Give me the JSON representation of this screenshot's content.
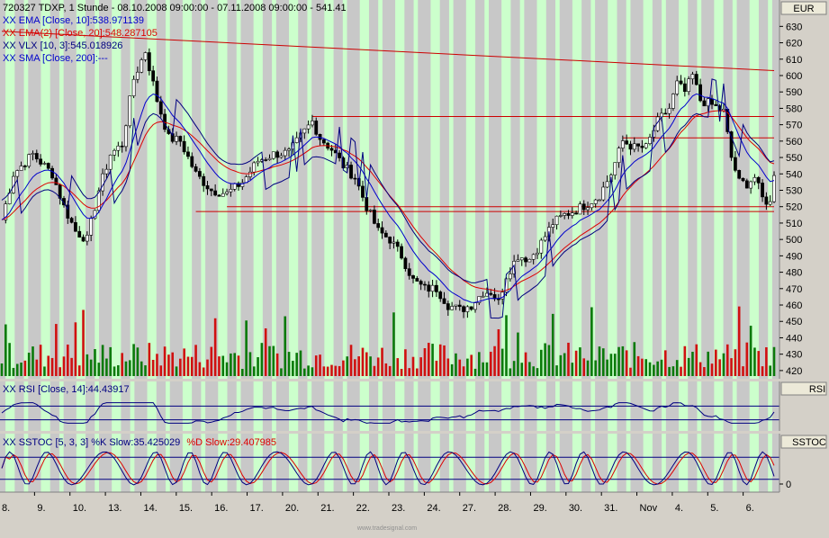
{
  "header": {
    "main_title": "720327  TDXP, 1 Stunde - 08.10.2008 09:00:00 - 07.11.2008 09:00:00 - 541.41",
    "ema10": "XX EMA [Close, 10]:538.971139",
    "ema20": "XX EMA(2) [Close, 20]:548.287105",
    "vlx": "XX VLX [10, 3]:545.018926",
    "sma200": "XX SMA [Close, 200]:---",
    "rsi": "XX RSI [Close, 14]:44.43917",
    "sstoc_main": "XX SSTOC [5, 3, 3] %K Slow:35.425029",
    "sstoc_d": "%D Slow:29.407985"
  },
  "axis": {
    "currency": "EUR",
    "rsi_label": "RSI",
    "sstoc_label": "SSTOC",
    "sstoc_zero": "0",
    "watermark": "www.tradesignal.com"
  },
  "colors": {
    "up": "#0a7a0a",
    "down": "#d01010",
    "ema10": "#0000cc",
    "ema20": "#dd0000",
    "vlx": "#000080",
    "band_green": "#ccffcc",
    "band_gray": "#c8c8c8",
    "hline": "#cc0000"
  },
  "chart_data": [
    {
      "type": "candlestick",
      "title": "720327  TDXP, 1 Stunde - 08.10.2008 09:00:00 - 07.11.2008 09:00:00 - 541.41",
      "ylim": [
        415,
        645
      ],
      "yticks": [
        630,
        620,
        610,
        600,
        590,
        580,
        570,
        560,
        550,
        540,
        530,
        520,
        510,
        500,
        490,
        480,
        470,
        460,
        450,
        440,
        430,
        420
      ],
      "x_labels": [
        "8.",
        "9.",
        "10.",
        "13.",
        "14.",
        "15.",
        "16.",
        "17.",
        "20.",
        "21.",
        "22.",
        "23.",
        "24.",
        "27.",
        "28.",
        "29.",
        "30.",
        "31.",
        "Nov",
        "4.",
        "5.",
        "6."
      ],
      "close_keypoints": [
        [
          0,
          512
        ],
        [
          3,
          540
        ],
        [
          8,
          552
        ],
        [
          13,
          540
        ],
        [
          16,
          520
        ],
        [
          19,
          505
        ],
        [
          22,
          500
        ],
        [
          25,
          530
        ],
        [
          28,
          552
        ],
        [
          31,
          558
        ],
        [
          34,
          598
        ],
        [
          37,
          615
        ],
        [
          40,
          585
        ],
        [
          43,
          562
        ],
        [
          46,
          560
        ],
        [
          50,
          540
        ],
        [
          54,
          530
        ],
        [
          58,
          528
        ],
        [
          62,
          535
        ],
        [
          66,
          548
        ],
        [
          70,
          552
        ],
        [
          74,
          553
        ],
        [
          78,
          566
        ],
        [
          80,
          572
        ],
        [
          82,
          562
        ],
        [
          85,
          555
        ],
        [
          88,
          545
        ],
        [
          91,
          538
        ],
        [
          94,
          520
        ],
        [
          97,
          505
        ],
        [
          100,
          500
        ],
        [
          103,
          490
        ],
        [
          106,
          475
        ],
        [
          109,
          470
        ],
        [
          112,
          470
        ],
        [
          115,
          460
        ],
        [
          118,
          457
        ],
        [
          121,
          460
        ],
        [
          124,
          468
        ],
        [
          126,
          468
        ],
        [
          128,
          462
        ],
        [
          130,
          478
        ],
        [
          133,
          490
        ],
        [
          136,
          488
        ],
        [
          139,
          498
        ],
        [
          142,
          510
        ],
        [
          145,
          515
        ],
        [
          148,
          518
        ],
        [
          151,
          522
        ],
        [
          154,
          527
        ],
        [
          157,
          540
        ],
        [
          160,
          560
        ],
        [
          163,
          556
        ],
        [
          166,
          556
        ],
        [
          169,
          572
        ],
        [
          172,
          580
        ],
        [
          174,
          595
        ],
        [
          176,
          590
        ],
        [
          178,
          600
        ],
        [
          180,
          585
        ],
        [
          183,
          582
        ],
        [
          186,
          578
        ],
        [
          188,
          550
        ],
        [
          190,
          535
        ],
        [
          192,
          534
        ],
        [
          194,
          538
        ],
        [
          196,
          525
        ],
        [
          198,
          522
        ],
        [
          199,
          541
        ]
      ],
      "series": [
        {
          "name": "XX EMA [Close, 10]",
          "last": 538.971139
        },
        {
          "name": "XX EMA(2) [Close, 20]",
          "last": 548.287105
        },
        {
          "name": "XX VLX [10, 3]",
          "last": 545.018926
        }
      ],
      "lines": [
        {
          "kind": "trend",
          "from": [
            0,
            627
          ],
          "to": [
            199,
            603
          ]
        },
        {
          "kind": "horizontal",
          "from": [
            50,
            517
          ],
          "to": [
            199,
            517
          ]
        },
        {
          "kind": "horizontal",
          "from": [
            58,
            520
          ],
          "to": [
            199,
            520
          ]
        },
        {
          "kind": "horizontal",
          "from": [
            80,
            575
          ],
          "to": [
            199,
            575
          ]
        },
        {
          "kind": "horizontal",
          "from": [
            160,
            562
          ],
          "to": [
            199,
            562
          ]
        }
      ]
    },
    {
      "type": "line",
      "title": "XX RSI [Close, 14]:44.43917",
      "ylim": [
        0,
        100
      ],
      "levels": [
        70,
        30
      ],
      "last": 44.43917
    },
    {
      "type": "line",
      "title": "XX SSTOC [5, 3, 3] %K Slow:35.425029 %D Slow:29.407985",
      "ylim": [
        -10,
        110
      ],
      "levels": [
        80,
        20
      ],
      "series": [
        {
          "name": "%K Slow",
          "last": 35.425029
        },
        {
          "name": "%D Slow",
          "last": 29.407985
        }
      ]
    }
  ]
}
